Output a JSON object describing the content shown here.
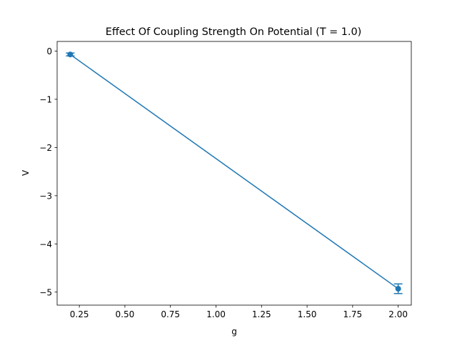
{
  "chart_data": {
    "type": "line",
    "title": "Effect Of Coupling Strength On Potential (T = 1.0)",
    "xlabel": "g",
    "ylabel": "V",
    "xlim": [
      0.128,
      2.072
    ],
    "ylim": [
      -5.27,
      0.2
    ],
    "xticks": [
      0.25,
      0.5,
      0.75,
      1.0,
      1.25,
      1.5,
      1.75,
      2.0
    ],
    "xtick_labels": [
      "0.25",
      "0.50",
      "0.75",
      "1.00",
      "1.25",
      "1.50",
      "1.75",
      "2.00"
    ],
    "yticks": [
      0,
      -1,
      -2,
      -3,
      -4,
      -5
    ],
    "ytick_labels": [
      "0",
      "−1",
      "−2",
      "−3",
      "−4",
      "−5"
    ],
    "grid": false,
    "series": [
      {
        "x": [
          0.2,
          2.0
        ],
        "y": [
          -0.07,
          -4.93
        ],
        "yerr": [
          0.03,
          0.1
        ],
        "color": "#1f77b4",
        "marker": "circle",
        "errorbars": true
      }
    ]
  }
}
